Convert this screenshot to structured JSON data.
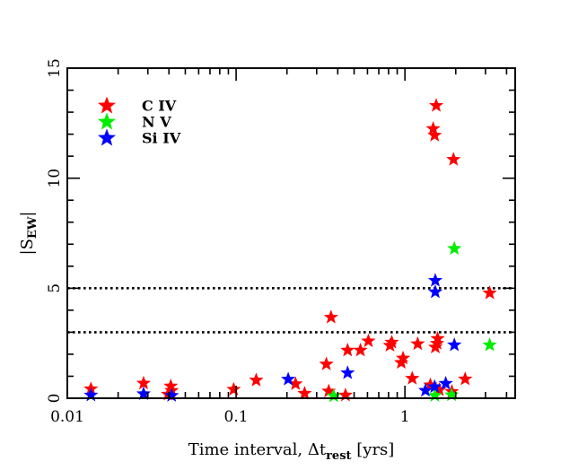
{
  "chart_data": {
    "type": "scatter",
    "title": "",
    "xlabel": {
      "main": "Time interval, Δt",
      "subscript": "rest",
      "suffix": " [yrs]"
    },
    "ylabel": {
      "main": "|S",
      "subscript": "EW",
      "suffix": "|"
    },
    "xscale": "log",
    "xlim": [
      0.01,
      4.5
    ],
    "ylim": [
      0,
      15
    ],
    "xticks": [
      {
        "value": 0.01,
        "label": "0.01"
      },
      {
        "value": 0.1,
        "label": "0.1"
      },
      {
        "value": 1,
        "label": "1"
      }
    ],
    "yticks": [
      {
        "value": 0,
        "label": "0"
      },
      {
        "value": 5,
        "label": "5"
      },
      {
        "value": 10,
        "label": "10"
      },
      {
        "value": 15,
        "label": "15"
      }
    ],
    "hlines": [
      {
        "y": 5,
        "style": "dotted"
      },
      {
        "y": 3,
        "style": "dotted"
      }
    ],
    "legend": {
      "position": "top-left",
      "entries": [
        {
          "label": "C IV",
          "color": "#ff0000"
        },
        {
          "label": "N V",
          "color": "#00ee00"
        },
        {
          "label": "Si IV",
          "color": "#0000ff"
        }
      ]
    },
    "series": [
      {
        "name": "C IV",
        "color": "#ff0000",
        "marker": "star",
        "points": [
          [
            0.0138,
            0.42
          ],
          [
            0.0283,
            0.68
          ],
          [
            0.041,
            0.55
          ],
          [
            0.0415,
            0.35
          ],
          [
            0.0395,
            0.18
          ],
          [
            0.0967,
            0.4
          ],
          [
            0.1315,
            0.82
          ],
          [
            0.225,
            0.65
          ],
          [
            0.2545,
            0.22
          ],
          [
            0.3425,
            1.55
          ],
          [
            0.365,
            3.68
          ],
          [
            0.3535,
            0.32
          ],
          [
            0.4575,
            2.18
          ],
          [
            0.4445,
            0.14
          ],
          [
            0.545,
            2.18
          ],
          [
            0.6075,
            2.6
          ],
          [
            0.816,
            2.4
          ],
          [
            0.836,
            2.54
          ],
          [
            0.951,
            1.62
          ],
          [
            0.975,
            1.82
          ],
          [
            1.105,
            0.9
          ],
          [
            1.19,
            2.47
          ],
          [
            1.415,
            0.6
          ],
          [
            1.47,
            12.25
          ],
          [
            1.5,
            11.95
          ],
          [
            1.533,
            13.3
          ],
          [
            1.514,
            2.32
          ],
          [
            1.55,
            2.49
          ],
          [
            1.562,
            2.71
          ],
          [
            1.6,
            0.38
          ],
          [
            1.94,
            10.85
          ],
          [
            1.896,
            0.3
          ],
          [
            2.274,
            0.87
          ],
          [
            3.178,
            4.78
          ]
        ]
      },
      {
        "name": "N V",
        "color": "#00ee00",
        "marker": "star",
        "points": [
          [
            0.3785,
            0.1
          ],
          [
            1.505,
            0.12
          ],
          [
            1.89,
            0.15
          ],
          [
            1.962,
            6.8
          ],
          [
            3.178,
            2.42
          ]
        ]
      },
      {
        "name": "Si IV",
        "color": "#0000ff",
        "marker": "star",
        "points": [
          [
            0.0138,
            0.14
          ],
          [
            0.0283,
            0.2
          ],
          [
            0.0415,
            0.12
          ],
          [
            0.2035,
            0.86
          ],
          [
            0.4575,
            1.15
          ],
          [
            1.323,
            0.35
          ],
          [
            1.513,
            5.35
          ],
          [
            1.513,
            4.83
          ],
          [
            1.5,
            0.52
          ],
          [
            1.745,
            0.67
          ],
          [
            1.962,
            2.42
          ]
        ]
      }
    ]
  }
}
